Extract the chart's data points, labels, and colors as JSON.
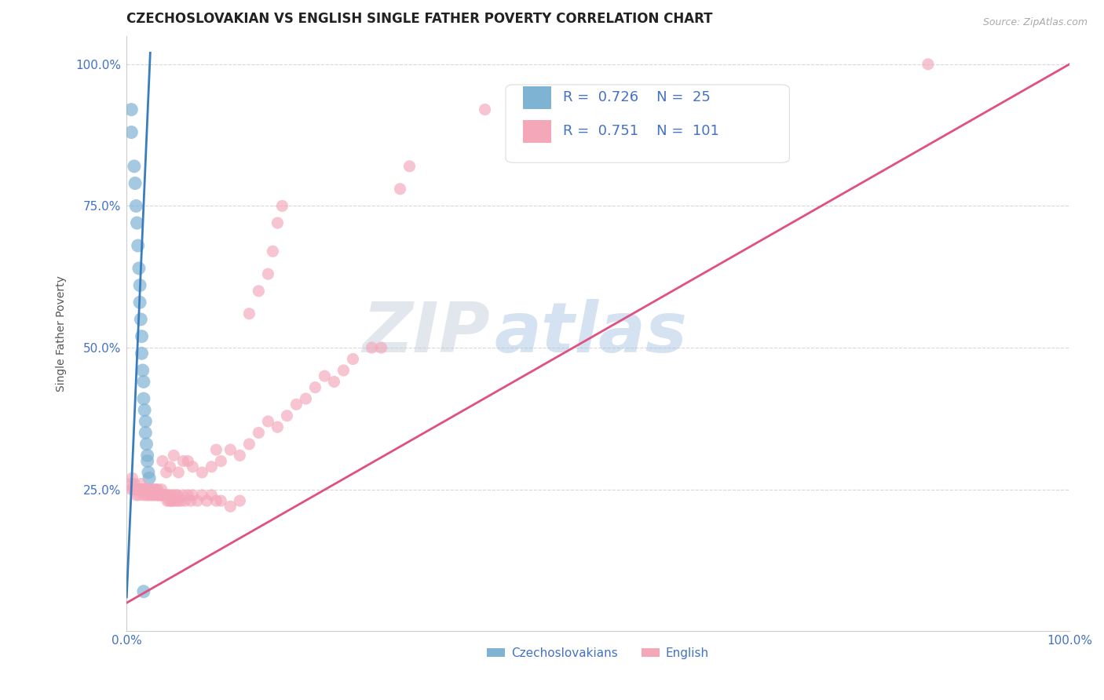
{
  "title": "CZECHOSLOVAKIAN VS ENGLISH SINGLE FATHER POVERTY CORRELATION CHART",
  "source": "Source: ZipAtlas.com",
  "ylabel": "Single Father Poverty",
  "watermark_zip": "ZIP",
  "watermark_atlas": "atlas",
  "blue_R": 0.726,
  "blue_N": 25,
  "pink_R": 0.751,
  "pink_N": 101,
  "blue_color": "#7fb3d3",
  "pink_color": "#f4a7b9",
  "blue_line_color": "#3a7dbf",
  "pink_line_color": "#e05080",
  "axis_label_color": "#4472c4",
  "legend_label_blue": "Czechoslovakians",
  "legend_label_pink": "English",
  "blue_scatter": [
    [
      0.005,
      0.92
    ],
    [
      0.005,
      0.88
    ],
    [
      0.008,
      0.82
    ],
    [
      0.009,
      0.79
    ],
    [
      0.01,
      0.75
    ],
    [
      0.011,
      0.72
    ],
    [
      0.012,
      0.68
    ],
    [
      0.013,
      0.64
    ],
    [
      0.014,
      0.61
    ],
    [
      0.014,
      0.58
    ],
    [
      0.015,
      0.55
    ],
    [
      0.016,
      0.52
    ],
    [
      0.016,
      0.49
    ],
    [
      0.017,
      0.46
    ],
    [
      0.018,
      0.44
    ],
    [
      0.018,
      0.41
    ],
    [
      0.019,
      0.39
    ],
    [
      0.02,
      0.37
    ],
    [
      0.02,
      0.35
    ],
    [
      0.021,
      0.33
    ],
    [
      0.022,
      0.31
    ],
    [
      0.022,
      0.3
    ],
    [
      0.023,
      0.28
    ],
    [
      0.024,
      0.27
    ],
    [
      0.018,
      0.07
    ]
  ],
  "pink_scatter": [
    [
      0.004,
      0.26
    ],
    [
      0.005,
      0.25
    ],
    [
      0.006,
      0.27
    ],
    [
      0.007,
      0.25
    ],
    [
      0.008,
      0.26
    ],
    [
      0.009,
      0.25
    ],
    [
      0.01,
      0.24
    ],
    [
      0.011,
      0.25
    ],
    [
      0.012,
      0.25
    ],
    [
      0.013,
      0.24
    ],
    [
      0.014,
      0.25
    ],
    [
      0.015,
      0.26
    ],
    [
      0.016,
      0.25
    ],
    [
      0.017,
      0.25
    ],
    [
      0.018,
      0.24
    ],
    [
      0.019,
      0.25
    ],
    [
      0.02,
      0.25
    ],
    [
      0.021,
      0.24
    ],
    [
      0.022,
      0.25
    ],
    [
      0.023,
      0.24
    ],
    [
      0.024,
      0.25
    ],
    [
      0.025,
      0.25
    ],
    [
      0.026,
      0.24
    ],
    [
      0.027,
      0.25
    ],
    [
      0.028,
      0.24
    ],
    [
      0.029,
      0.25
    ],
    [
      0.03,
      0.24
    ],
    [
      0.031,
      0.25
    ],
    [
      0.032,
      0.24
    ],
    [
      0.033,
      0.25
    ],
    [
      0.034,
      0.24
    ],
    [
      0.035,
      0.24
    ],
    [
      0.036,
      0.24
    ],
    [
      0.037,
      0.25
    ],
    [
      0.038,
      0.24
    ],
    [
      0.039,
      0.24
    ],
    [
      0.04,
      0.24
    ],
    [
      0.042,
      0.24
    ],
    [
      0.043,
      0.23
    ],
    [
      0.044,
      0.24
    ],
    [
      0.045,
      0.23
    ],
    [
      0.046,
      0.24
    ],
    [
      0.047,
      0.23
    ],
    [
      0.048,
      0.23
    ],
    [
      0.049,
      0.24
    ],
    [
      0.05,
      0.23
    ],
    [
      0.052,
      0.24
    ],
    [
      0.053,
      0.23
    ],
    [
      0.054,
      0.24
    ],
    [
      0.055,
      0.23
    ],
    [
      0.058,
      0.23
    ],
    [
      0.06,
      0.24
    ],
    [
      0.062,
      0.23
    ],
    [
      0.065,
      0.24
    ],
    [
      0.068,
      0.23
    ],
    [
      0.07,
      0.24
    ],
    [
      0.075,
      0.23
    ],
    [
      0.08,
      0.24
    ],
    [
      0.085,
      0.23
    ],
    [
      0.09,
      0.24
    ],
    [
      0.095,
      0.23
    ],
    [
      0.1,
      0.23
    ],
    [
      0.11,
      0.22
    ],
    [
      0.12,
      0.23
    ],
    [
      0.038,
      0.3
    ],
    [
      0.042,
      0.28
    ],
    [
      0.046,
      0.29
    ],
    [
      0.05,
      0.31
    ],
    [
      0.055,
      0.28
    ],
    [
      0.06,
      0.3
    ],
    [
      0.065,
      0.3
    ],
    [
      0.07,
      0.29
    ],
    [
      0.08,
      0.28
    ],
    [
      0.09,
      0.29
    ],
    [
      0.095,
      0.32
    ],
    [
      0.1,
      0.3
    ],
    [
      0.11,
      0.32
    ],
    [
      0.12,
      0.31
    ],
    [
      0.13,
      0.33
    ],
    [
      0.14,
      0.35
    ],
    [
      0.15,
      0.37
    ],
    [
      0.16,
      0.36
    ],
    [
      0.17,
      0.38
    ],
    [
      0.18,
      0.4
    ],
    [
      0.19,
      0.41
    ],
    [
      0.2,
      0.43
    ],
    [
      0.21,
      0.45
    ],
    [
      0.22,
      0.44
    ],
    [
      0.23,
      0.46
    ],
    [
      0.24,
      0.48
    ],
    [
      0.26,
      0.5
    ],
    [
      0.27,
      0.5
    ],
    [
      0.13,
      0.56
    ],
    [
      0.14,
      0.6
    ],
    [
      0.15,
      0.63
    ],
    [
      0.155,
      0.67
    ],
    [
      0.16,
      0.72
    ],
    [
      0.165,
      0.75
    ],
    [
      0.29,
      0.78
    ],
    [
      0.3,
      0.82
    ],
    [
      0.38,
      0.92
    ],
    [
      0.44,
      0.92
    ],
    [
      0.85,
      1.0
    ]
  ],
  "xlim": [
    0.0,
    1.0
  ],
  "ylim": [
    0.0,
    1.05
  ],
  "xtick_vals": [
    0.0,
    1.0
  ],
  "xtick_labels": [
    "0.0%",
    "100.0%"
  ],
  "ytick_vals": [
    0.25,
    0.5,
    0.75,
    1.0
  ],
  "ytick_labels": [
    "25.0%",
    "50.0%",
    "75.0%",
    "100.0%"
  ],
  "blue_line": [
    [
      0.0,
      0.06
    ],
    [
      0.025,
      1.02
    ]
  ],
  "pink_line": [
    [
      0.0,
      0.05
    ],
    [
      1.0,
      1.0
    ]
  ],
  "title_fontsize": 12,
  "background_color": "#ffffff",
  "grid_color": "#d8d8d8"
}
